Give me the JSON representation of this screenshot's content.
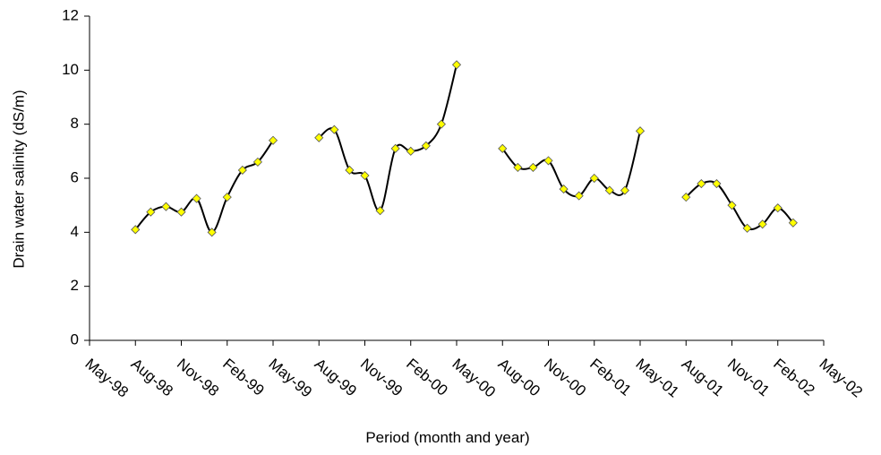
{
  "chart_data": {
    "type": "line",
    "y_label": "Drain water salinity (dS/m)",
    "x_label": "Period (month and year)",
    "x": [
      3,
      4,
      5,
      6,
      7,
      8,
      9,
      10,
      11,
      12,
      13,
      14,
      15,
      16,
      17,
      18,
      19,
      20,
      21,
      22,
      23,
      24,
      25,
      26,
      27,
      28,
      29,
      30,
      31,
      32,
      33,
      34,
      35,
      36,
      37,
      38,
      39,
      40,
      41,
      42,
      43,
      44,
      45,
      46
    ],
    "values": [
      4.1,
      4.75,
      4.95,
      4.75,
      5.25,
      4.0,
      5.3,
      6.3,
      6.6,
      7.4,
      null,
      null,
      7.5,
      7.8,
      6.3,
      6.1,
      4.8,
      7.1,
      7.0,
      7.2,
      8.0,
      10.2,
      null,
      null,
      7.1,
      6.4,
      6.4,
      6.65,
      5.6,
      5.35,
      6.0,
      5.55,
      5.55,
      7.75,
      null,
      null,
      5.3,
      5.8,
      5.8,
      5.0,
      4.15,
      4.3,
      4.9,
      4.35
    ],
    "color": "#000000",
    "marker_color": "#ffff00",
    "xlim": [
      0,
      48
    ],
    "xticks": [
      {
        "value": 0,
        "label": "May-98"
      },
      {
        "value": 3,
        "label": "Aug-98"
      },
      {
        "value": 6,
        "label": "Nov-98"
      },
      {
        "value": 9,
        "label": "Feb-99"
      },
      {
        "value": 12,
        "label": "May-99"
      },
      {
        "value": 15,
        "label": "Aug-99"
      },
      {
        "value": 18,
        "label": "Nov-99"
      },
      {
        "value": 21,
        "label": "Feb-00"
      },
      {
        "value": 24,
        "label": "May-00"
      },
      {
        "value": 27,
        "label": "Aug-00"
      },
      {
        "value": 30,
        "label": "Nov-00"
      },
      {
        "value": 33,
        "label": "Feb-01"
      },
      {
        "value": 36,
        "label": "May-01"
      },
      {
        "value": 39,
        "label": "Aug-01"
      },
      {
        "value": 42,
        "label": "Nov-01"
      },
      {
        "value": 45,
        "label": "Feb-02"
      },
      {
        "value": 48,
        "label": "May-02"
      }
    ],
    "ylim": [
      0,
      12
    ],
    "yticks": [
      0,
      2,
      4,
      6,
      8,
      10,
      12
    ],
    "grid": false
  }
}
